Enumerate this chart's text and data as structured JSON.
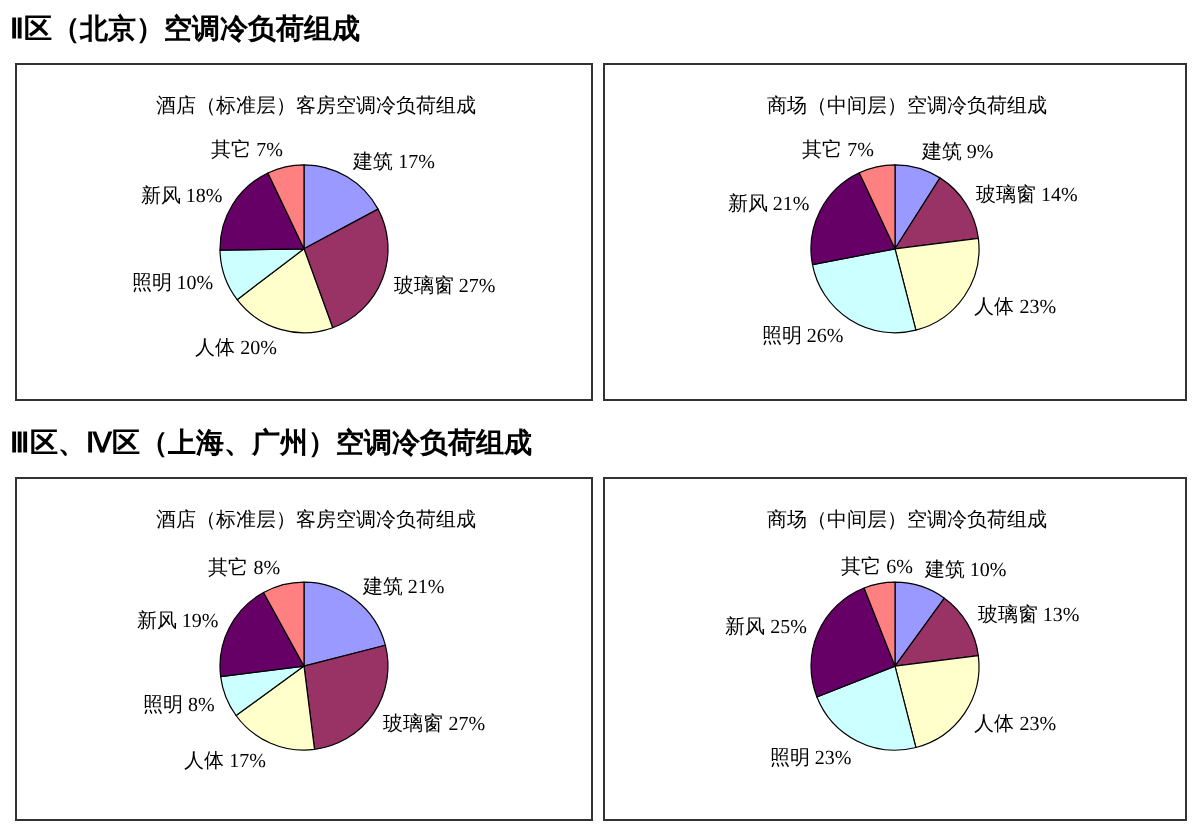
{
  "chart_data": [
    {
      "type": "pie",
      "title": "酒店（标准层）客房空调冷负荷组成",
      "annotations": [
        "Ⅱ区（北京）空调冷负荷组成"
      ],
      "categories": [
        "建筑",
        "玻璃窗",
        "人体",
        "照明",
        "新风",
        "其它"
      ],
      "values": [
        17,
        27,
        20,
        10,
        18,
        7
      ],
      "value_labels": [
        "17%",
        "27%",
        "20%",
        "10%",
        "18%",
        "7%"
      ],
      "colors": [
        "#9999ff",
        "#993366",
        "#ffffcc",
        "#ccffff",
        "#660066",
        "#ff8080"
      ]
    },
    {
      "type": "pie",
      "title": "商场（中间层）空调冷负荷组成",
      "categories": [
        "建筑",
        "玻璃窗",
        "人体",
        "照明",
        "新风",
        "其它"
      ],
      "values": [
        9,
        14,
        23,
        26,
        21,
        7
      ],
      "value_labels": [
        "9%",
        "14%",
        "23%",
        "26%",
        "21%",
        "7%"
      ],
      "colors": [
        "#9999ff",
        "#993366",
        "#ffffcc",
        "#ccffff",
        "#660066",
        "#ff8080"
      ]
    },
    {
      "type": "pie",
      "title": "酒店（标准层）客房空调冷负荷组成",
      "annotations": [
        "Ⅲ区、Ⅳ区（上海、广州）空调冷负荷组成"
      ],
      "categories": [
        "建筑",
        "玻璃窗",
        "人体",
        "照明",
        "新风",
        "其它"
      ],
      "values": [
        21,
        27,
        17,
        8,
        19,
        8
      ],
      "value_labels": [
        "21%",
        "27%",
        "17%",
        "8%",
        "19%",
        "8%"
      ],
      "colors": [
        "#9999ff",
        "#993366",
        "#ffffcc",
        "#ccffff",
        "#660066",
        "#ff8080"
      ]
    },
    {
      "type": "pie",
      "title": "商场（中间层）空调冷负荷组成",
      "categories": [
        "建筑",
        "玻璃窗",
        "人体",
        "照明",
        "新风",
        "其它"
      ],
      "values": [
        10,
        13,
        23,
        23,
        25,
        6
      ],
      "value_labels": [
        "10%",
        "13%",
        "23%",
        "23%",
        "25%",
        "6%"
      ],
      "colors": [
        "#9999ff",
        "#993366",
        "#ffffcc",
        "#ccffff",
        "#660066",
        "#ff8080"
      ]
    }
  ]
}
